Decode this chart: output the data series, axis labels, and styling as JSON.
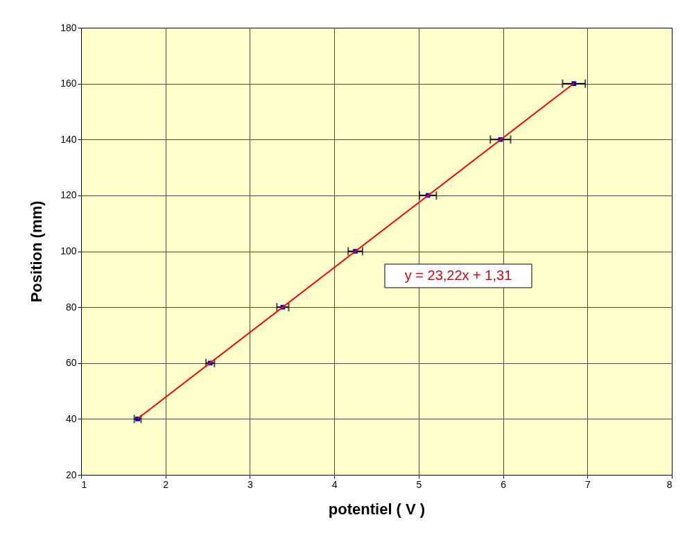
{
  "chart_data": {
    "type": "scatter",
    "xlabel": "potentiel ( V )",
    "ylabel": "Position (mm)",
    "xlim": [
      1,
      8
    ],
    "xticks": [
      1,
      2,
      3,
      4,
      5,
      6,
      7,
      8
    ],
    "ylim": [
      20,
      180
    ],
    "yticks": [
      20,
      40,
      60,
      80,
      100,
      120,
      140,
      160,
      180
    ],
    "grid": true,
    "series": [
      {
        "color": "#0000cc",
        "marker": "square",
        "x": [
          1.67,
          2.53,
          3.39,
          4.25,
          5.11,
          5.97,
          6.84
        ],
        "values": [
          40,
          60,
          80,
          100,
          120,
          140,
          160
        ],
        "xerrors": [
          0.04,
          0.05,
          0.07,
          0.085,
          0.1,
          0.12,
          0.135
        ]
      },
      {
        "type": "line",
        "marker": "none",
        "color": "#ff0000",
        "x": [
          1.67,
          6.84
        ],
        "values": [
          40.1,
          160.1
        ]
      }
    ],
    "annotations": [
      "y = 23,22x + 1,31"
    ]
  }
}
